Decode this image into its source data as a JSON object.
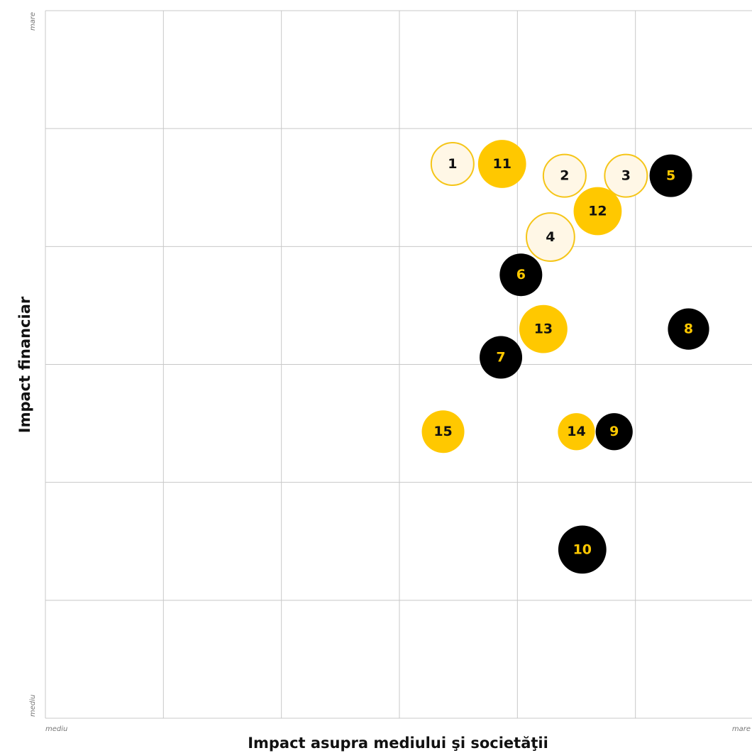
{
  "chart_data": {
    "type": "scatter",
    "title": "",
    "xlabel": "Impact asupra mediului şi societăţii",
    "ylabel": "Impact financiar",
    "x_tick_labels": {
      "min": "mediu",
      "max": "mare"
    },
    "y_tick_labels": {
      "min": "mediu",
      "max": "mare"
    },
    "xlim": [
      0,
      6
    ],
    "ylim": [
      0,
      6
    ],
    "grid": true,
    "legend": "none",
    "styles": {
      "light": {
        "fill": "#FFF7E6",
        "stroke": "#F5C518",
        "text": "#111111"
      },
      "yellow": {
        "fill": "#FFC800",
        "stroke": "#FFC800",
        "text": "#111111"
      },
      "black": {
        "fill": "#000000",
        "stroke": "#000000",
        "text": "#FFC800"
      }
    },
    "points": [
      {
        "label": "1",
        "x": 3.45,
        "y": 4.7,
        "style": "light",
        "r": 1.0
      },
      {
        "label": "2",
        "x": 4.4,
        "y": 4.6,
        "style": "light",
        "r": 1.0
      },
      {
        "label": "3",
        "x": 4.92,
        "y": 4.6,
        "style": "light",
        "r": 1.0
      },
      {
        "label": "4",
        "x": 4.28,
        "y": 4.08,
        "style": "light",
        "r": 1.13
      },
      {
        "label": "5",
        "x": 5.3,
        "y": 4.6,
        "style": "black",
        "r": 1.0
      },
      {
        "label": "6",
        "x": 4.03,
        "y": 3.76,
        "style": "black",
        "r": 1.0
      },
      {
        "label": "7",
        "x": 3.86,
        "y": 3.06,
        "style": "black",
        "r": 1.0
      },
      {
        "label": "8",
        "x": 5.45,
        "y": 3.3,
        "style": "black",
        "r": 0.97
      },
      {
        "label": "9",
        "x": 4.82,
        "y": 2.43,
        "style": "black",
        "r": 0.87
      },
      {
        "label": "10",
        "x": 4.55,
        "y": 1.43,
        "style": "black",
        "r": 1.13
      },
      {
        "label": "11",
        "x": 3.87,
        "y": 4.7,
        "style": "yellow",
        "r": 1.13
      },
      {
        "label": "12",
        "x": 4.68,
        "y": 4.3,
        "style": "yellow",
        "r": 1.13
      },
      {
        "label": "13",
        "x": 4.22,
        "y": 3.3,
        "style": "yellow",
        "r": 1.13
      },
      {
        "label": "14",
        "x": 4.5,
        "y": 2.43,
        "style": "yellow",
        "r": 0.87
      },
      {
        "label": "15",
        "x": 3.37,
        "y": 2.43,
        "style": "yellow",
        "r": 1.0
      }
    ]
  }
}
